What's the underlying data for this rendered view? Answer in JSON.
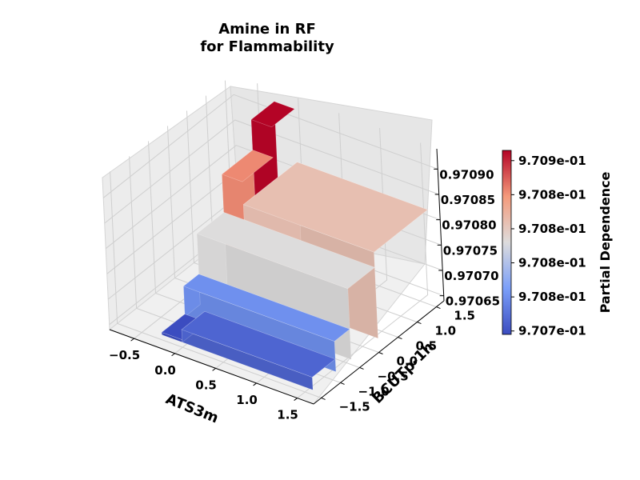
{
  "chart_data": {
    "type": "surface",
    "title_line1": "Amine in RF",
    "title_line2": "for Flammability",
    "xlabel": "ATS3m",
    "ylabel": "BCUTp-1h",
    "zlabel": "",
    "colormap": "coolwarm",
    "x_ticks": [
      "−0.5",
      "0.0",
      "0.5",
      "1.0",
      "1.5"
    ],
    "y_ticks": [
      "−1.5",
      "−1.0",
      "−0.5",
      "0.0",
      "0.5",
      "1.0",
      "1.5"
    ],
    "z_ticks": [
      "0.97065",
      "0.97070",
      "0.97075",
      "0.97080",
      "0.97085",
      "0.97090"
    ],
    "colorbar": {
      "label": "Partial Dependence",
      "tick_labels": [
        "9.707e-01",
        "9.708e-01",
        "9.708e-01",
        "9.708e-01",
        "9.708e-01",
        "9.709e-01"
      ],
      "min": 0.970655,
      "max": 0.970925
    },
    "surface_levels": [
      {
        "ats3m_range": [
          -0.25,
          0.0
        ],
        "bcutp_range": [
          -1.5,
          -0.9
        ],
        "value": 0.970655
      },
      {
        "ats3m_range": [
          0.0,
          1.6
        ],
        "bcutp_range": [
          -1.5,
          -0.9
        ],
        "value": 0.970675
      },
      {
        "ats3m_range": [
          -0.25,
          1.6
        ],
        "bcutp_range": [
          -0.9,
          -0.5
        ],
        "value": 0.97071
      },
      {
        "ats3m_range": [
          -0.25,
          1.6
        ],
        "bcutp_range": [
          -0.5,
          0.2
        ],
        "value": 0.97079
      },
      {
        "ats3m_range": [
          -0.25,
          0.0
        ],
        "bcutp_range": [
          0.2,
          1.0
        ],
        "value": 0.970865
      },
      {
        "ats3m_range": [
          0.0,
          1.6
        ],
        "bcutp_range": [
          0.2,
          1.6
        ],
        "value": 0.97082
      },
      {
        "ats3m_range": [
          -0.25,
          0.0
        ],
        "bcutp_range": [
          1.0,
          1.6
        ],
        "value": 0.970925
      }
    ]
  }
}
